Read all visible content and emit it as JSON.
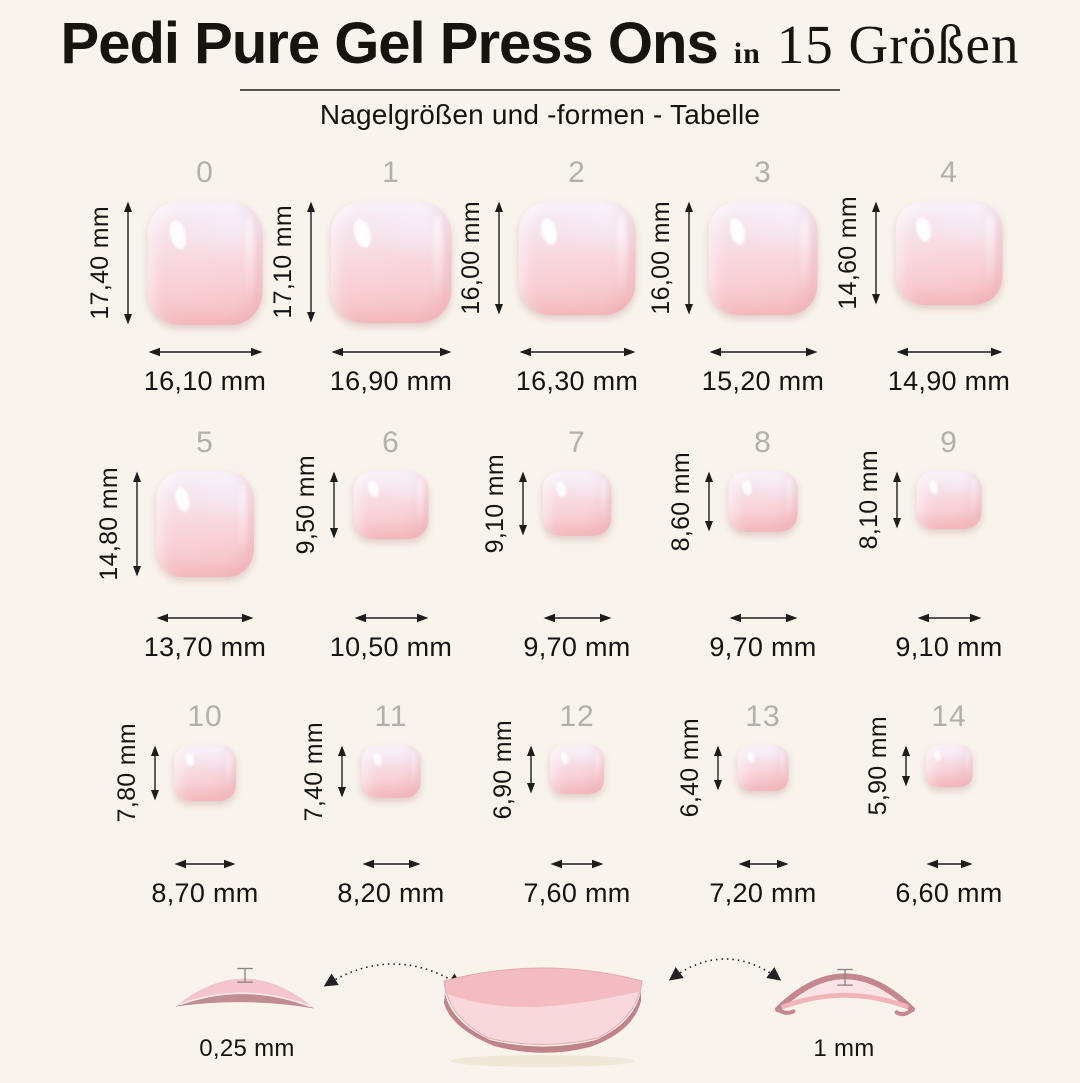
{
  "page": {
    "background": "#f8f3eb",
    "text_color": "#1b1b1b",
    "number_color": "#b3afab",
    "nail_pink": "#f6bec2",
    "nail_highlight": "#f5edf7",
    "profile_dark_pink": "#bf8d92"
  },
  "header": {
    "title_main": "Pedi Pure Gel Press Ons",
    "title_small_word": "in",
    "title_suffix": "15 Größen",
    "subtitle": "Nagelgrößen und -formen - Tabelle"
  },
  "unit": "mm",
  "sizes": [
    {
      "num": "0",
      "height_mm": 17.4,
      "width_mm": 16.1,
      "height_label": "17,40 mm",
      "width_label": "16,10 mm"
    },
    {
      "num": "1",
      "height_mm": 17.1,
      "width_mm": 16.9,
      "height_label": "17,10 mm",
      "width_label": "16,90 mm"
    },
    {
      "num": "2",
      "height_mm": 16.0,
      "width_mm": 16.3,
      "height_label": "16,00 mm",
      "width_label": "16,30 mm"
    },
    {
      "num": "3",
      "height_mm": 16.0,
      "width_mm": 15.2,
      "height_label": "16,00 mm",
      "width_label": "15,20 mm"
    },
    {
      "num": "4",
      "height_mm": 14.6,
      "width_mm": 14.9,
      "height_label": "14,60 mm",
      "width_label": "14,90 mm"
    },
    {
      "num": "5",
      "height_mm": 14.8,
      "width_mm": 13.7,
      "height_label": "14,80 mm",
      "width_label": "13,70 mm"
    },
    {
      "num": "6",
      "height_mm": 9.5,
      "width_mm": 10.5,
      "height_label": "9,50 mm",
      "width_label": "10,50 mm"
    },
    {
      "num": "7",
      "height_mm": 9.1,
      "width_mm": 9.7,
      "height_label": "9,10 mm",
      "width_label": "9,70 mm"
    },
    {
      "num": "8",
      "height_mm": 8.6,
      "width_mm": 9.7,
      "height_label": "8,60 mm",
      "width_label": "9,70 mm"
    },
    {
      "num": "9",
      "height_mm": 8.1,
      "width_mm": 9.1,
      "height_label": "8,10 mm",
      "width_label": "9,10 mm"
    },
    {
      "num": "10",
      "height_mm": 7.8,
      "width_mm": 8.7,
      "height_label": "7,80 mm",
      "width_label": "8,70 mm"
    },
    {
      "num": "11",
      "height_mm": 7.4,
      "width_mm": 8.2,
      "height_label": "7,40 mm",
      "width_label": "8,20 mm"
    },
    {
      "num": "12",
      "height_mm": 6.9,
      "width_mm": 7.6,
      "height_label": "6,90 mm",
      "width_label": "7,60 mm"
    },
    {
      "num": "13",
      "height_mm": 6.4,
      "width_mm": 7.2,
      "height_label": "6,40 mm",
      "width_label": "7,20 mm"
    },
    {
      "num": "14",
      "height_mm": 5.9,
      "width_mm": 6.6,
      "height_label": "5,90 mm",
      "width_label": "6,60 mm"
    }
  ],
  "profile_section": {
    "thin_thickness_label": "0,25 mm",
    "thick_thickness_label": "1 mm"
  }
}
